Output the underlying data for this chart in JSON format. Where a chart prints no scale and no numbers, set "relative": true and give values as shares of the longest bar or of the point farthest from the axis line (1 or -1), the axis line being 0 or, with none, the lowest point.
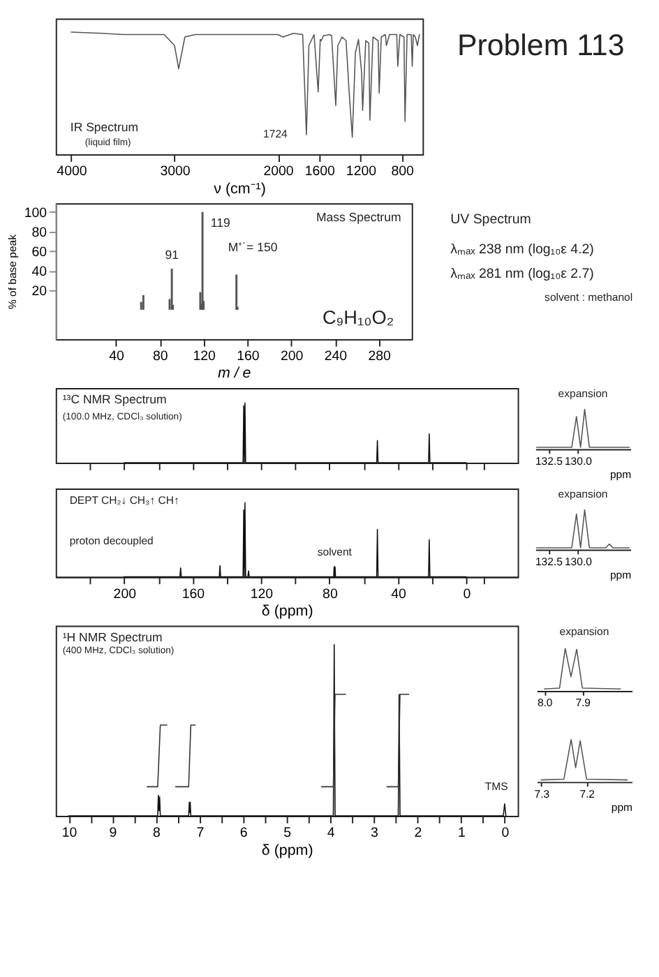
{
  "chart_data": [
    {
      "type": "line",
      "title": "IR Spectrum",
      "subtitle": "(liquid film)",
      "xlabel": "ν (cm⁻¹)",
      "relative": true,
      "xlim": [
        4150,
        600
      ],
      "xticks": [
        4000,
        3000,
        2000,
        1600,
        1200,
        800
      ],
      "series": [
        {
          "color": "#555555",
          "x": [
            4000,
            3700,
            3500,
            3100,
            3000,
            2960,
            2900,
            2800,
            2500,
            2000,
            1950,
            1850,
            1760,
            1724,
            1700,
            1650,
            1610,
            1590,
            1580,
            1560,
            1500,
            1480,
            1440,
            1420,
            1380,
            1340,
            1310,
            1280,
            1250,
            1220,
            1190,
            1180,
            1150,
            1120,
            1110,
            1080,
            1030,
            1020,
            1000,
            960,
            950,
            920,
            850,
            840,
            820,
            780,
            770,
            750,
            710,
            700,
            690,
            670,
            650,
            630
          ],
          "values": [
            1.0,
            0.99,
            0.98,
            0.98,
            0.89,
            0.7,
            0.96,
            0.98,
            0.98,
            0.98,
            0.96,
            0.99,
            0.98,
            0.16,
            0.89,
            0.98,
            0.51,
            0.94,
            0.93,
            0.97,
            0.98,
            0.97,
            0.4,
            0.89,
            0.96,
            0.93,
            0.5,
            0.14,
            0.83,
            0.94,
            0.67,
            0.36,
            0.93,
            0.91,
            0.28,
            0.96,
            0.93,
            0.5,
            0.96,
            0.98,
            0.89,
            0.98,
            0.98,
            0.72,
            0.98,
            0.96,
            0.27,
            0.98,
            0.98,
            0.72,
            0.98,
            0.96,
            0.89,
            0.98
          ]
        }
      ],
      "annotations": [
        {
          "text": "1724",
          "x": 1724,
          "y": 0.16
        }
      ]
    },
    {
      "type": "other",
      "title": "Problem 113"
    },
    {
      "type": "bar",
      "title": "Mass Spectrum",
      "xlabel": "m / e",
      "ylabel": "% of base peak",
      "xlim": [
        -15,
        310
      ],
      "xticks": [
        40,
        80,
        120,
        160,
        200,
        240,
        280
      ],
      "ylim": [
        -30,
        109
      ],
      "yticks": [
        20,
        40,
        60,
        80,
        100
      ],
      "series": [
        {
          "color": "#555555",
          "x": [
            63,
            65,
            89,
            91,
            92,
            117,
            118,
            119,
            120,
            150,
            151
          ],
          "values": [
            8,
            15,
            11,
            42,
            5,
            18,
            6,
            100,
            9,
            36,
            3
          ]
        }
      ],
      "annotations": [
        {
          "text": "119",
          "x": 119,
          "y": 100
        },
        {
          "text": "91",
          "x": 91,
          "y": 42
        },
        {
          "text": "M⁺˙= 150",
          "x": 150,
          "y": 36
        },
        "C₉H₁₀O₂"
      ]
    },
    {
      "type": "other",
      "title": "UV Spectrum",
      "annotations": [
        "λₘₐₓ 238 nm  (log₁₀ε  4.2)",
        "λₘₐₓ 281 nm  (log₁₀ε  2.7)",
        "solvent :  methanol"
      ]
    },
    {
      "type": "line",
      "title": "¹³C NMR Spectrum",
      "subtitle": "(100.0 MHz, CDCl₃ solution)",
      "relative": true,
      "tick_labels": false,
      "xlim": [
        240,
        -30
      ],
      "xticks": [
        220,
        200,
        180,
        160,
        140,
        120,
        100,
        80,
        60,
        40,
        20,
        0,
        -10
      ],
      "series": [
        {
          "color": "#111111",
          "x": [
            200,
            130.5,
            130.1,
            129.75,
            129.4,
            129.0,
            52.4,
            52,
            51.6,
            22.1,
            21.7,
            21.3,
            0
          ],
          "values": [
            0,
            0,
            0.95,
            0,
            1.0,
            0,
            0,
            0.37,
            0,
            0,
            0.48,
            0,
            0
          ]
        }
      ]
    },
    {
      "type": "line",
      "relative": true,
      "tick_labels": "x",
      "xlabel": "ppm",
      "xlim": [
        133.6,
        125.5
      ],
      "xticks": [
        132.5,
        {
          "value": 130,
          "label": "130.0"
        }
      ],
      "series": [
        {
          "color": "#555555",
          "x": [
            133.5,
            130.5,
            130.1,
            129.75,
            129.4,
            129.0,
            125.6
          ],
          "values": [
            0,
            0,
            0.81,
            0,
            1.0,
            0,
            0
          ]
        }
      ],
      "annotations": [
        "expansion"
      ]
    },
    {
      "type": "line",
      "relative": true,
      "xlabel": "δ (ppm)",
      "xlim": [
        240,
        -30
      ],
      "xticks": [
        {
          "value": 220,
          "label": null
        },
        200,
        {
          "value": 180,
          "label": null
        },
        160,
        {
          "value": 140,
          "label": null
        },
        120,
        {
          "value": 100,
          "label": null
        },
        80,
        {
          "value": 60,
          "label": null
        },
        40,
        {
          "value": 20,
          "label": null
        },
        0,
        {
          "value": -10,
          "label": null
        }
      ],
      "series": [
        {
          "color": "#111111",
          "x": [
            200,
            167.4,
            167,
            166.6,
            144.4,
            144,
            143.6,
            130.5,
            130.1,
            129.75,
            129.4,
            129.0,
            127.7,
            127.3,
            126.9,
            77.5,
            77.3,
            77.15,
            77.0,
            76.85,
            76.7,
            76.5,
            52.4,
            52,
            51.6,
            22.1,
            21.7,
            21.3,
            0
          ],
          "values": [
            0,
            0,
            0.12,
            0,
            0,
            0.15,
            0,
            0,
            0.9,
            0,
            1.0,
            0,
            0,
            0.08,
            0,
            0,
            0.13,
            0,
            0.14,
            0,
            0.13,
            0,
            0,
            0.64,
            0,
            0,
            0.5,
            0,
            0
          ]
        }
      ],
      "annotations": [
        "DEPT   CH₂↓  CH₃↑  CH↑",
        "proton decoupled",
        {
          "text": "solvent",
          "x": 77,
          "y": 0.14
        }
      ]
    },
    {
      "type": "line",
      "relative": true,
      "tick_labels": "x",
      "xlabel": "ppm",
      "xlim": [
        133.6,
        125.5
      ],
      "xticks": [
        132.5,
        {
          "value": 130,
          "label": "130.0"
        }
      ],
      "series": [
        {
          "color": "#555555",
          "x": [
            133.5,
            130.5,
            130.1,
            129.75,
            129.4,
            129.0,
            127.6,
            127.3,
            127.0,
            125.6
          ],
          "values": [
            0,
            0,
            0.89,
            0,
            1.0,
            0,
            0,
            0.1,
            0,
            0
          ]
        }
      ],
      "annotations": [
        "expansion"
      ]
    },
    {
      "type": "line",
      "title": "¹H NMR Spectrum",
      "subtitle": "(400 MHz, CDCl₃ solution)",
      "relative": true,
      "xlabel": "δ (ppm)",
      "xlim": [
        10.3,
        -0.3
      ],
      "xticks": [
        10,
        {
          "value": 9.5,
          "label": null
        },
        9,
        {
          "value": 8.5,
          "label": null
        },
        8,
        {
          "value": 7.5,
          "label": null
        },
        7,
        {
          "value": 6.5,
          "label": null
        },
        6,
        {
          "value": 5.5,
          "label": null
        },
        5,
        {
          "value": 4.5,
          "label": null
        },
        4,
        {
          "value": 3.5,
          "label": null
        },
        3,
        {
          "value": 2.5,
          "label": null
        },
        2,
        {
          "value": 1.5,
          "label": null
        },
        1,
        {
          "value": 0.5,
          "label": null
        },
        0
      ],
      "series": [
        {
          "color": "#111111",
          "x": [
            10.0,
            7.96,
            7.945,
            7.93,
            7.915,
            7.9,
            7.25,
            7.234,
            7.224,
            7.214,
            7.2,
            3.93,
            3.91,
            3.89,
            2.44,
            2.42,
            2.4,
            0.03,
            0,
            -0.03
          ],
          "values": [
            0,
            0,
            0.12,
            0.03,
            0.11,
            0,
            0,
            0.08,
            0.02,
            0.08,
            0,
            0,
            1,
            0,
            0,
            0.71,
            0,
            0,
            0.07,
            0
          ]
        },
        {
          "type": "line",
          "color": "#333333",
          "x": [
            8.2,
            7.96,
            7.9,
            7.75,
            7.6,
            7.55,
            7.25,
            7.2,
            7.1,
            5.0,
            4.2,
            3.93,
            3.89,
            3.65,
            3.0,
            2.7,
            2.44,
            2.4,
            2.2
          ],
          "values": [
            0.17,
            0.17,
            0.53,
            0.53,
            null,
            0.17,
            0.17,
            0.53,
            0.53,
            null,
            0.17,
            0.17,
            0.71,
            0.71,
            null,
            0.17,
            0.17,
            0.71,
            0.71
          ]
        }
      ],
      "annotations": [
        {
          "text": "TMS",
          "x": 0,
          "y": 0.07
        }
      ]
    },
    {
      "type": "line",
      "relative": true,
      "tick_labels": "x",
      "xlim": [
        8.02,
        7.77
      ],
      "xticks": [
        {
          "value": 8,
          "label": "8.0"
        },
        7.9
      ],
      "series": [
        {
          "color": "#555555",
          "x": [
            8.0,
            7.96,
            7.945,
            7.93,
            7.915,
            7.9,
            7.8
          ],
          "values": [
            0,
            0.02,
            1.0,
            0.3,
            0.98,
            0.02,
            0
          ]
        }
      ],
      "annotations": [
        "expansion"
      ]
    },
    {
      "type": "line",
      "relative": true,
      "tick_labels": "x",
      "xlabel": "ppm",
      "xlim": [
        7.31,
        7.1
      ],
      "xticks": [
        7.3,
        7.2
      ],
      "series": [
        {
          "color": "#555555",
          "x": [
            7.3,
            7.25,
            7.234,
            7.224,
            7.214,
            7.2,
            7.11
          ],
          "values": [
            0,
            0.02,
            1.0,
            0.3,
            0.97,
            0.02,
            0
          ]
        }
      ]
    }
  ]
}
